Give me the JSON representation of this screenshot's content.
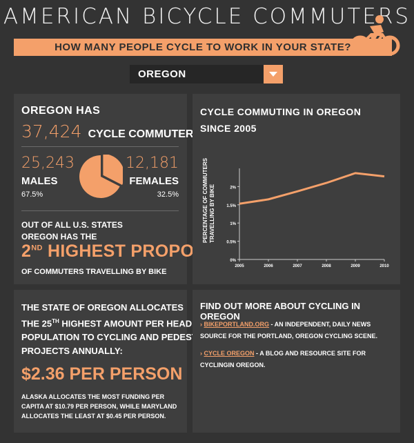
{
  "header": {
    "title": "AMERICAN BICYCLE COMMUTERS",
    "subtitle": "HOW MANY PEOPLE CYCLE TO WORK IN YOUR STATE?",
    "logo_icon": "cyclist-icon"
  },
  "state_select": {
    "selected": "OREGON"
  },
  "colors": {
    "accent": "#f4a06a",
    "background": "#333333",
    "panel": "#3e3e3e"
  },
  "summary": {
    "state_has": "OREGON HAS",
    "total": "37,424",
    "total_label": "CYCLE COMMUTERS",
    "males_count": "25,243",
    "males_label": "MALES",
    "males_pct": "67.5%",
    "females_count": "12,181",
    "females_label": "FEMALES",
    "females_pct": "32.5%",
    "rank_intro_1": "OUT OF ALL U.S. STATES",
    "rank_intro_2": "OREGON HAS THE",
    "rank_num": "2",
    "rank_sup": "ND",
    "rank_text": "HIGHEST PROPORTION",
    "rank_outro": "OF COMMUTERS TRAVELLING BY BIKE",
    "gender_pie": {
      "male_fraction": 0.675,
      "female_fraction": 0.325
    }
  },
  "chart_data": {
    "type": "line",
    "title": "CYCLE COMMUTING IN OREGON",
    "subtitle": "SINCE 2005",
    "ylabel": "PERCENTAGE OF COMMUTERS TRAVELLING BY BIKE",
    "xlabel": "",
    "x": [
      "2005",
      "2006",
      "2007",
      "2008",
      "2009",
      "2010"
    ],
    "values": [
      1.53,
      1.65,
      1.87,
      2.1,
      2.37,
      2.28
    ],
    "ylim": [
      0,
      2.5
    ],
    "yticks": [
      "0%",
      "0.5%",
      "1%",
      "1.5%",
      "2%"
    ],
    "color": "#f4a06a"
  },
  "funding": {
    "line1": "THE STATE OF OREGON ALLOCATES",
    "line2_pre": "THE 25",
    "line2_sup": "TH",
    "line2_post": " HIGHEST AMOUNT PER HEAD OF",
    "line3": "POPULATION TO CYCLING AND PEDESTRIAN",
    "line4": "PROJECTS ANNUALLY:",
    "amount": "$2.36 PER PERSON",
    "note": "ALASKA ALLOCATES THE MOST FUNDING PER CAPITA AT $10.79 PER PERSON, WHILE MARYLAND ALLOCATES THE LEAST AT $0.45 PER PERSON."
  },
  "resources": {
    "heading": "FIND OUT MORE ABOUT CYCLING IN OREGON",
    "items": [
      {
        "link": "BIKEPORTLAND.ORG",
        "text": " - AN INDEPENDENT, DAILY NEWS SOURCE FOR THE PORTLAND, OREGON CYCLING SCENE."
      },
      {
        "link": "CYCLE OREGON",
        "text": " - A BLOG AND RESOURCE SITE FOR CYCLINGIN OREGON."
      }
    ]
  }
}
